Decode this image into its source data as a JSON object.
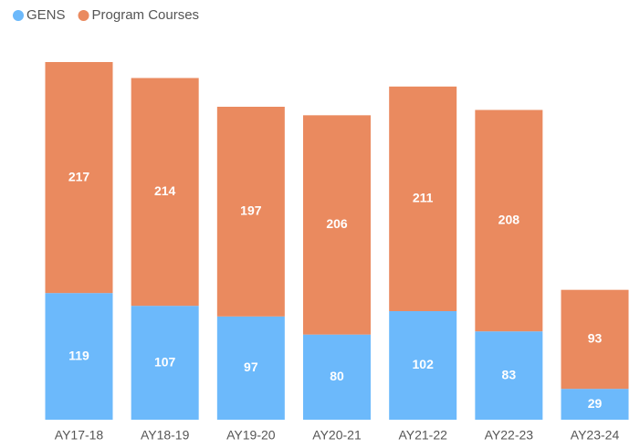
{
  "chart_data": {
    "type": "stacked-bar",
    "categories": [
      "AY17-18",
      "AY18-19",
      "AY19-20",
      "AY20-21",
      "AY21-22",
      "AY22-23",
      "AY23-24"
    ],
    "series": [
      {
        "name": "GENS",
        "color": "#6cb9fb",
        "values": [
          119,
          107,
          97,
          80,
          102,
          83,
          29
        ]
      },
      {
        "name": "Program Courses",
        "color": "#ea8a5f",
        "values": [
          217,
          214,
          197,
          206,
          211,
          208,
          93
        ]
      }
    ],
    "legend": "top-left"
  }
}
